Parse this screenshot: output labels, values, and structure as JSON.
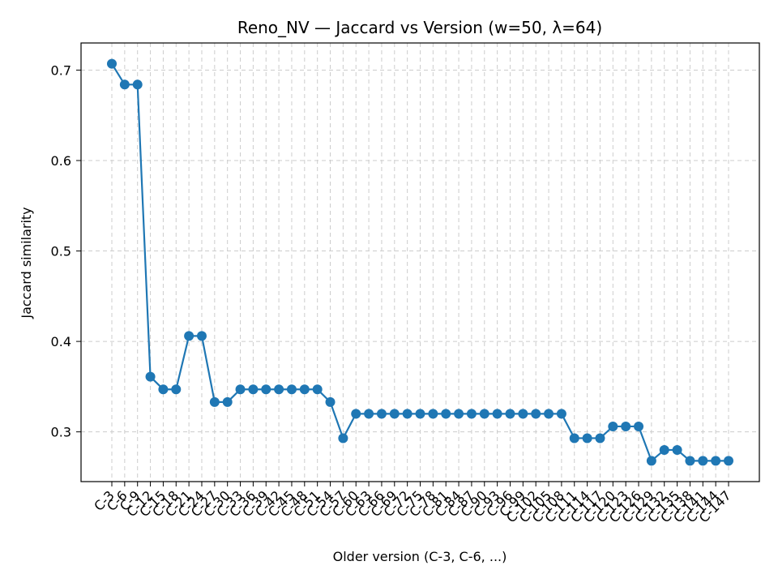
{
  "chart_data": {
    "type": "line",
    "title": "Reno_NV — Jaccard vs Version (w=50, λ=64)",
    "xlabel": "Older version (C-3, C-6, ...)",
    "ylabel": "Jaccard similarity",
    "categories": [
      "C-3",
      "C-6",
      "C-9",
      "C-12",
      "C-15",
      "C-18",
      "C-21",
      "C-24",
      "C-27",
      "C-30",
      "C-33",
      "C-36",
      "C-39",
      "C-42",
      "C-45",
      "C-48",
      "C-51",
      "C-54",
      "C-57",
      "C-60",
      "C-63",
      "C-66",
      "C-69",
      "C-72",
      "C-75",
      "C-78",
      "C-81",
      "C-84",
      "C-87",
      "C-90",
      "C-93",
      "C-96",
      "C-99",
      "C-102",
      "C-105",
      "C-108",
      "C-111",
      "C-114",
      "C-117",
      "C-120",
      "C-123",
      "C-126",
      "C-129",
      "C-132",
      "C-135",
      "C-138",
      "C-141",
      "C-144",
      "C-147"
    ],
    "series": [
      {
        "values": [
          0.707,
          0.684,
          0.684,
          0.361,
          0.347,
          0.347,
          0.406,
          0.406,
          0.333,
          0.333,
          0.347,
          0.347,
          0.347,
          0.347,
          0.347,
          0.347,
          0.347,
          0.333,
          0.293,
          0.32,
          0.32,
          0.32,
          0.32,
          0.32,
          0.32,
          0.32,
          0.32,
          0.32,
          0.32,
          0.32,
          0.32,
          0.32,
          0.32,
          0.32,
          0.32,
          0.32,
          0.293,
          0.293,
          0.293,
          0.306,
          0.306,
          0.306,
          0.268,
          0.28,
          0.28,
          0.268,
          0.268,
          0.268,
          0.268
        ],
        "color": "#1f77b4"
      }
    ],
    "yticks": [
      0.3,
      0.4,
      0.5,
      0.6,
      0.7
    ],
    "ylim": [
      0.245,
      0.73
    ],
    "grid": true,
    "legend": "none"
  }
}
